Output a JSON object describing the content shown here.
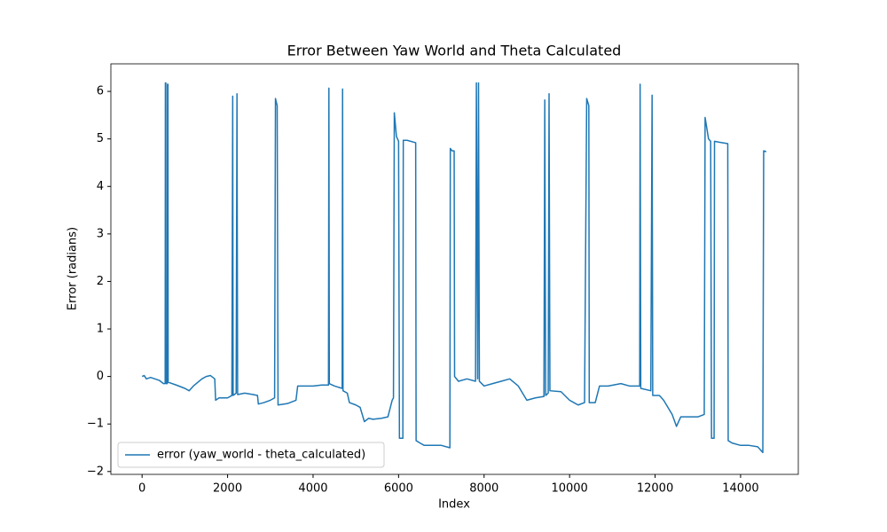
{
  "chart_data": {
    "type": "line",
    "title": "Error Between Yaw World and Theta Calculated",
    "x_label": "Index",
    "y_label": "Error (radians)",
    "xlim": [
      -730,
      15350
    ],
    "ylim": [
      -2.06,
      6.58
    ],
    "xticks": [
      0,
      2000,
      4000,
      6000,
      8000,
      10000,
      12000,
      14000
    ],
    "yticks": [
      {
        "value": -2,
        "label": "−2"
      },
      {
        "value": -1,
        "label": "−1"
      },
      0,
      1,
      2,
      3,
      4,
      5,
      6
    ],
    "legend": "lower left",
    "x": [
      0,
      50,
      100,
      200,
      400,
      500,
      540,
      545,
      555,
      560,
      590,
      595,
      605,
      610,
      800,
      1000,
      1100,
      1200,
      1400,
      1500,
      1600,
      1700,
      1720,
      1800,
      2000,
      2100,
      2120,
      2130,
      2200,
      2220,
      2235,
      2400,
      2600,
      2700,
      2720,
      2850,
      3000,
      3100,
      3120,
      3160,
      3180,
      3400,
      3600,
      3640,
      3800,
      4000,
      4200,
      4360,
      4370,
      4380,
      4500,
      4680,
      4690,
      4700,
      4800,
      4850,
      5000,
      5100,
      5200,
      5300,
      5400,
      5600,
      5750,
      5850,
      5880,
      5900,
      5950,
      6000,
      6020,
      6100,
      6110,
      6200,
      6400,
      6410,
      6500,
      6600,
      6800,
      7000,
      7200,
      7210,
      7250,
      7300,
      7310,
      7400,
      7600,
      7800,
      7820,
      7850,
      7870,
      7890,
      8000,
      8200,
      8400,
      8600,
      8800,
      9000,
      9200,
      9400,
      9420,
      9440,
      9500,
      9520,
      9540,
      9800,
      10000,
      10100,
      10200,
      10350,
      10400,
      10450,
      10460,
      10600,
      10700,
      10900,
      11200,
      11400,
      11640,
      11650,
      11665,
      11900,
      11930,
      11945,
      12100,
      12200,
      12400,
      12500,
      12600,
      12800,
      13000,
      13150,
      13170,
      13250,
      13300,
      13320,
      13380,
      13390,
      13500,
      13700,
      13710,
      13800,
      14000,
      14200,
      14400,
      14520,
      14540,
      14600
    ],
    "series": [
      {
        "name": "error (yaw_world - theta_calculated)",
        "color": "#1f77b4",
        "values": [
          0.0,
          0.02,
          -0.05,
          -0.02,
          -0.08,
          -0.15,
          -0.15,
          6.18,
          6.18,
          -0.15,
          -0.15,
          6.15,
          6.15,
          -0.12,
          -0.18,
          -0.25,
          -0.3,
          -0.2,
          -0.05,
          0.0,
          0.02,
          -0.05,
          -0.5,
          -0.45,
          -0.45,
          -0.4,
          5.9,
          -0.4,
          -0.35,
          5.95,
          -0.38,
          -0.35,
          -0.38,
          -0.4,
          -0.58,
          -0.55,
          -0.5,
          -0.45,
          5.85,
          5.7,
          -0.6,
          -0.57,
          -0.5,
          -0.2,
          -0.2,
          -0.2,
          -0.18,
          -0.18,
          6.07,
          -0.15,
          -0.2,
          -0.25,
          6.05,
          -0.3,
          -0.35,
          -0.55,
          -0.6,
          -0.65,
          -0.95,
          -0.88,
          -0.9,
          -0.88,
          -0.85,
          -0.5,
          -0.45,
          5.55,
          5.05,
          4.95,
          -1.3,
          -1.3,
          4.97,
          4.97,
          4.92,
          -1.35,
          -1.4,
          -1.45,
          -1.45,
          -1.45,
          -1.5,
          4.8,
          4.75,
          4.75,
          0.0,
          -0.1,
          -0.05,
          -0.1,
          6.18,
          -0.05,
          6.18,
          -0.1,
          -0.2,
          -0.15,
          -0.1,
          -0.05,
          -0.2,
          -0.5,
          -0.45,
          -0.42,
          5.82,
          -0.4,
          -0.35,
          5.95,
          -0.3,
          -0.32,
          -0.5,
          -0.55,
          -0.6,
          -0.55,
          5.85,
          5.7,
          -0.55,
          -0.55,
          -0.2,
          -0.2,
          -0.15,
          -0.2,
          -0.2,
          6.15,
          -0.25,
          -0.3,
          5.92,
          -0.4,
          -0.4,
          -0.5,
          -0.8,
          -1.05,
          -0.85,
          -0.85,
          -0.85,
          -0.8,
          5.45,
          5.0,
          4.95,
          -1.3,
          -1.3,
          4.95,
          4.93,
          4.9,
          -1.35,
          -1.4,
          -1.45,
          -1.45,
          -1.48,
          -1.6,
          4.75,
          4.73
        ]
      }
    ]
  }
}
